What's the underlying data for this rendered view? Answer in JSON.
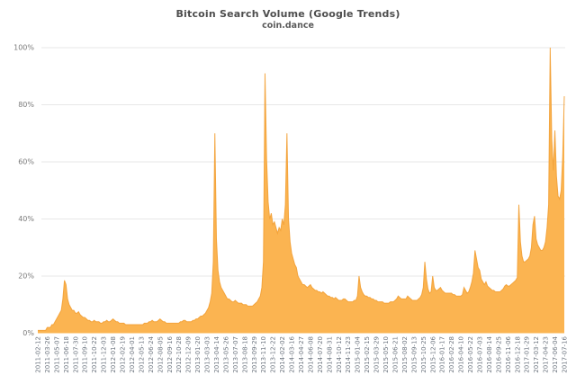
{
  "header": {
    "title": "Bitcoin Search Volume (Google Trends)",
    "subtitle": "coin.dance"
  },
  "colors": {
    "area_fill": "#FBB451",
    "area_stroke": "#F29E33",
    "grid": "#e7e7e7",
    "y_label": "#7a7a7a",
    "x_label": "#6e7680",
    "title": "#4d4d4d"
  },
  "chart_data": {
    "type": "area",
    "title": "Bitcoin Search Volume (Google Trends)",
    "subtitle": "coin.dance",
    "xlabel": "",
    "ylabel": "",
    "ylim": [
      0,
      100
    ],
    "y_tick_labels": [
      "0%",
      "20%",
      "40%",
      "60%",
      "80%",
      "100%"
    ],
    "y_tick_values": [
      0,
      20,
      40,
      60,
      80,
      100
    ],
    "grid": "horizontal-only",
    "legend": "none",
    "x_interval": "weekly",
    "x_start": "2011-02-12",
    "x_end": "2017-07-16",
    "x_tick_every_n_points": 6,
    "x_tick_labels": [
      "2011-02-12",
      "2011-03-26",
      "2011-05-07",
      "2011-06-18",
      "2011-07-30",
      "2011-09-10",
      "2011-10-22",
      "2011-12-03",
      "2012-01-08",
      "2012-02-19",
      "2012-04-01",
      "2012-05-13",
      "2012-06-24",
      "2012-08-05",
      "2012-09-16",
      "2012-10-28",
      "2012-12-09",
      "2013-01-20",
      "2013-03-03",
      "2013-04-14",
      "2013-05-26",
      "2013-07-07",
      "2013-08-18",
      "2013-09-29",
      "2013-11-10",
      "2013-12-22",
      "2014-02-02",
      "2014-03-16",
      "2014-04-27",
      "2014-06-08",
      "2014-07-20",
      "2014-08-31",
      "2014-10-12",
      "2014-11-23",
      "2015-01-04",
      "2015-02-15",
      "2015-03-29",
      "2015-05-10",
      "2015-06-21",
      "2015-08-02",
      "2015-09-13",
      "2015-10-25",
      "2015-12-06",
      "2016-01-17",
      "2016-02-28",
      "2016-04-10",
      "2016-05-22",
      "2016-07-03",
      "2016-08-14",
      "2016-09-25",
      "2016-11-06",
      "2016-12-18",
      "2017-01-29",
      "2017-03-12",
      "2017-04-23",
      "2017-06-04",
      "2017-07-16"
    ],
    "values": [
      1,
      1,
      1,
      1,
      1,
      1,
      2,
      2,
      2,
      3,
      3,
      4,
      5,
      6,
      7,
      8,
      12,
      18.5,
      17,
      12,
      10,
      9,
      8,
      8,
      7,
      7,
      7.5,
      6.5,
      6,
      5.5,
      5.5,
      5,
      4.5,
      4.5,
      4,
      4,
      4.5,
      4,
      4,
      4,
      3.5,
      3.5,
      4,
      4,
      4.5,
      4,
      4,
      4.5,
      5,
      4.5,
      4,
      4,
      3.5,
      3.5,
      3.5,
      3.5,
      3,
      3,
      3,
      3,
      3,
      3,
      3,
      3,
      3,
      3,
      3,
      3,
      3.5,
      3.5,
      3.5,
      4,
      4,
      4.5,
      4,
      4,
      4,
      4.5,
      5,
      4.5,
      4,
      4,
      3.5,
      3.5,
      3.5,
      3.5,
      3.5,
      3.5,
      3.5,
      3.5,
      3.5,
      4,
      4,
      4.5,
      4.5,
      4,
      4,
      4,
      4,
      4.5,
      4.5,
      5,
      5,
      5.5,
      6,
      6,
      6.5,
      7,
      8,
      9,
      11,
      14,
      25,
      70,
      33,
      22,
      18,
      16,
      15,
      14,
      13,
      12,
      12,
      11.5,
      11,
      11,
      11.5,
      11,
      10.5,
      10.5,
      10.5,
      10,
      10,
      10,
      9.5,
      9.5,
      9.5,
      9.5,
      10,
      10.5,
      11,
      12,
      13,
      16,
      25,
      91,
      61,
      46,
      40,
      42,
      38,
      39,
      37,
      35,
      37,
      36,
      40,
      38,
      45,
      70,
      40,
      32,
      28,
      26,
      24,
      23,
      20,
      19,
      18,
      17,
      17,
      16.5,
      16,
      16.5,
      17,
      16,
      15.5,
      15,
      15,
      14.5,
      14.5,
      14,
      14.5,
      14,
      13.5,
      13,
      13,
      12.5,
      12.5,
      12,
      12.5,
      12,
      11.5,
      11.5,
      11.5,
      12,
      12,
      11.5,
      11,
      11,
      11,
      11,
      11.5,
      11.5,
      13,
      20,
      16,
      14.5,
      13.5,
      13,
      13,
      12.5,
      12.5,
      12,
      12,
      11.5,
      11.5,
      11,
      11,
      11,
      11,
      10.5,
      10.5,
      10.5,
      10.5,
      11,
      11,
      11,
      11.5,
      12,
      13,
      12.5,
      12,
      12,
      12,
      12,
      13,
      12.5,
      12,
      11.5,
      11.5,
      11.5,
      11.5,
      12,
      12.5,
      13.5,
      16,
      25,
      19,
      15.5,
      14,
      14.5,
      20,
      16,
      15,
      15,
      15.5,
      16,
      15,
      14.5,
      14,
      14,
      14,
      14,
      14,
      13.5,
      13.5,
      13,
      13,
      13,
      13,
      13.5,
      16,
      15,
      14,
      14.5,
      16,
      18,
      21,
      29,
      26,
      23,
      22,
      19,
      18,
      17,
      18,
      16.5,
      16,
      15.5,
      15,
      15,
      14.5,
      14.5,
      14.5,
      14.5,
      15,
      15.5,
      16.5,
      17,
      16.5,
      16.5,
      17,
      17.5,
      18,
      18.5,
      19.5,
      45,
      32,
      27,
      25,
      25,
      25.5,
      26,
      27,
      30,
      38,
      41,
      33,
      31,
      30,
      29,
      29,
      30,
      32,
      37,
      45,
      100,
      68,
      57,
      71,
      55,
      48,
      47,
      50,
      62,
      83
    ]
  }
}
